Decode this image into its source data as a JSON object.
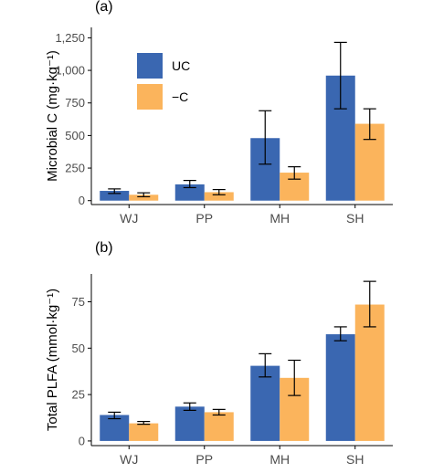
{
  "colors": {
    "uc": "#3a67b1",
    "minus_c": "#fbb45c"
  },
  "chart_data": [
    {
      "type": "bar",
      "panel_label": "(a)",
      "title": "",
      "xlabel": "",
      "ylabel": "Microbial C (mg·kg⁻¹)",
      "categories": [
        "WJ",
        "PP",
        "MH",
        "SH"
      ],
      "ylim": [
        -30,
        1330
      ],
      "yticks": [
        0,
        250,
        500,
        750,
        1000,
        1250
      ],
      "ytick_labels": [
        "0",
        "250",
        "500",
        "750",
        "1,000",
        "1,250"
      ],
      "grid": false,
      "legend": {
        "placement": "top-left",
        "entries": [
          "UC",
          "−C"
        ]
      },
      "series": [
        {
          "name": "UC",
          "values": [
            75,
            125,
            480,
            960
          ],
          "err_low": [
            55,
            100,
            280,
            705
          ],
          "err_high": [
            90,
            155,
            690,
            1215
          ]
        },
        {
          "name": "−C",
          "values": [
            45,
            65,
            215,
            590
          ],
          "err_low": [
            30,
            45,
            165,
            470
          ],
          "err_high": [
            60,
            85,
            260,
            705
          ]
        }
      ]
    },
    {
      "type": "bar",
      "panel_label": "(b)",
      "title": "",
      "xlabel": "",
      "ylabel": "Total PLFA (mmol·kg⁻¹)",
      "categories": [
        "WJ",
        "PP",
        "MH",
        "SH"
      ],
      "ylim": [
        -2.5,
        90
      ],
      "yticks": [
        0,
        25,
        50,
        75
      ],
      "ytick_labels": [
        "0",
        "25",
        "50",
        "75"
      ],
      "grid": false,
      "legend": null,
      "series": [
        {
          "name": "UC",
          "values": [
            14,
            18.5,
            40.5,
            57.5
          ],
          "err_low": [
            12,
            16.5,
            34.5,
            54
          ],
          "err_high": [
            15.5,
            20.5,
            47,
            61.5
          ]
        },
        {
          "name": "−C",
          "values": [
            9.5,
            15.5,
            34,
            73.5
          ],
          "err_low": [
            9,
            14,
            24.5,
            61.5
          ],
          "err_high": [
            10.5,
            17,
            43.5,
            86
          ]
        }
      ]
    }
  ]
}
